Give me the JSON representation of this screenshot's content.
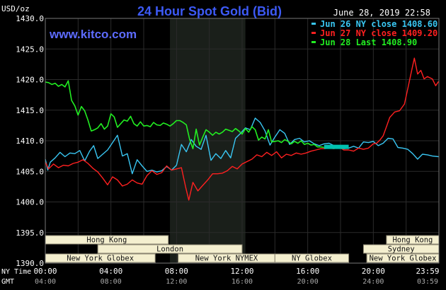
{
  "chart_data": {
    "type": "line",
    "title": "24 Hour Spot Gold (Bid)",
    "watermark": "www.kitco.com",
    "timestamp": "June 28, 2019 22:58",
    "y_unit_label": "USD/oz",
    "ylim": [
      1390.0,
      1430.0
    ],
    "y_ticks": [
      "1430.0",
      "1425.0",
      "1420.0",
      "1415.0",
      "1410.0",
      "1405.0",
      "1400.0",
      "1395.0",
      "1390.0"
    ],
    "x_range_hours": [
      0,
      24
    ],
    "x_row_labels": [
      "NY Time",
      "GMT"
    ],
    "x_ticks_ny": [
      "00:00",
      "04:00",
      "08:00",
      "12:00",
      "16:00",
      "20:00",
      "23:59"
    ],
    "x_ticks_gmt": [
      "04:00",
      "08:00",
      "12:00",
      "16:00",
      "20:00",
      "24:00",
      "03:59"
    ],
    "x_tick_hours": [
      0,
      4,
      8,
      12,
      16,
      20,
      23.98
    ],
    "shaded_hours": [
      7.6,
      12.2
    ],
    "grid": true,
    "legend_position": "top-right",
    "colors": {
      "background": "#000000",
      "grid": "#2b2b2b",
      "text": "#ffffff",
      "title": "#3d5af5",
      "watermark": "#5d6cff",
      "shade": "#1a1f1a",
      "session_fill": "#f4efcf",
      "session_border": "#8a8470",
      "series_jun26": "#39c6f2",
      "series_jun27": "#ff2020",
      "series_jun28": "#22ee22",
      "overlap_segment": "#00c2b0"
    },
    "sessions": {
      "row1": [
        {
          "label": "Hong Kong",
          "start": 0,
          "end": 7.5
        },
        {
          "label": "Hong Kong",
          "start": 20.8,
          "end": 24
        }
      ],
      "row2": [
        {
          "label": "London",
          "start": 3.2,
          "end": 12.0
        },
        {
          "label": "Sydney",
          "start": 19.4,
          "end": 24
        }
      ],
      "row3": [
        {
          "label": "New York Globex",
          "start": 0,
          "end": 6.7
        },
        {
          "label": "New York NYMEX",
          "start": 8.1,
          "end": 14.0
        },
        {
          "label": "NY Globex",
          "start": 14.0,
          "end": 18.5
        },
        {
          "label": "New York Globex",
          "start": 19.6,
          "end": 24
        }
      ]
    },
    "overlap_segment": {
      "x": [
        17.0,
        18.5
      ],
      "y": 1409.0
    },
    "series": [
      {
        "name": "Jun 26 NY close 1408.60",
        "color": "#39c6f2",
        "width": 1.4,
        "x": [
          0,
          0.15,
          0.3,
          0.6,
          0.9,
          1.2,
          1.5,
          1.8,
          2.1,
          2.4,
          2.7,
          2.95,
          3.2,
          3.5,
          3.8,
          4.1,
          4.4,
          4.7,
          5.0,
          5.3,
          5.6,
          5.9,
          6.2,
          6.5,
          6.8,
          7.1,
          7.4,
          7.7,
          8.0,
          8.3,
          8.6,
          8.9,
          9.2,
          9.5,
          9.8,
          10.1,
          10.4,
          10.7,
          11.0,
          11.3,
          11.6,
          11.9,
          12.2,
          12.5,
          12.8,
          13.1,
          13.4,
          13.7,
          14.0,
          14.3,
          14.6,
          14.9,
          15.2,
          15.5,
          15.8,
          16.1,
          16.4,
          16.7,
          17.0,
          17.3,
          17.6,
          17.9,
          18.2,
          18.5,
          18.8,
          19.1,
          19.4,
          19.7,
          20.0,
          20.3,
          20.6,
          20.9,
          21.2,
          21.5,
          21.8,
          22.1,
          22.4,
          22.7,
          23.0,
          23.3,
          23.6,
          23.98
        ],
        "y": [
          1407.0,
          1405.2,
          1406.5,
          1407.2,
          1408.1,
          1407.4,
          1408.0,
          1407.9,
          1408.4,
          1406.7,
          1408.3,
          1409.2,
          1407.1,
          1407.8,
          1408.5,
          1409.7,
          1410.9,
          1407.5,
          1407.9,
          1404.6,
          1406.9,
          1405.9,
          1405.0,
          1405.2,
          1404.9,
          1405.1,
          1405.8,
          1405.2,
          1406.0,
          1409.4,
          1408.2,
          1410.2,
          1409.1,
          1408.6,
          1410.9,
          1406.8,
          1407.9,
          1407.1,
          1408.4,
          1407.2,
          1410.4,
          1411.2,
          1412.1,
          1411.8,
          1413.7,
          1413.0,
          1411.6,
          1409.3,
          1410.6,
          1411.8,
          1411.2,
          1409.4,
          1410.2,
          1410.4,
          1409.8,
          1410.0,
          1409.5,
          1409.2,
          1409.5,
          1409.6,
          1409.2,
          1408.9,
          1408.7,
          1408.8,
          1409.1,
          1408.8,
          1409.8,
          1409.7,
          1409.9,
          1409.2,
          1409.6,
          1410.4,
          1410.3,
          1408.9,
          1408.8,
          1408.6,
          1407.9,
          1407.0,
          1407.8,
          1407.7,
          1407.5,
          1407.4
        ]
      },
      {
        "name": "Jun 27 NY close 1409.20",
        "color": "#ff2020",
        "width": 1.4,
        "x": [
          0,
          0.2,
          0.5,
          0.8,
          1.1,
          1.4,
          1.7,
          2.0,
          2.3,
          2.6,
          2.9,
          3.2,
          3.5,
          3.8,
          4.1,
          4.4,
          4.7,
          5.0,
          5.3,
          5.6,
          5.9,
          6.2,
          6.5,
          6.8,
          7.1,
          7.4,
          7.7,
          8.0,
          8.3,
          8.55,
          8.75,
          9.0,
          9.3,
          9.6,
          9.9,
          10.2,
          10.5,
          10.8,
          11.1,
          11.4,
          11.7,
          12.0,
          12.3,
          12.6,
          12.9,
          13.2,
          13.5,
          13.8,
          14.1,
          14.4,
          14.7,
          15.0,
          15.3,
          15.6,
          15.9,
          16.2,
          16.5,
          16.8,
          17.0,
          17.3,
          17.6,
          17.9,
          18.2,
          18.5,
          18.8,
          19.1,
          19.4,
          19.7,
          20.0,
          20.2,
          20.4,
          20.6,
          20.8,
          21.0,
          21.3,
          21.6,
          21.9,
          22.1,
          22.3,
          22.5,
          22.7,
          22.9,
          23.1,
          23.3,
          23.6,
          23.8,
          23.98
        ],
        "y": [
          1406.5,
          1405.4,
          1406.2,
          1405.6,
          1406.0,
          1405.9,
          1406.3,
          1406.5,
          1406.9,
          1406.3,
          1405.5,
          1404.9,
          1403.9,
          1402.8,
          1404.1,
          1403.6,
          1402.6,
          1402.9,
          1403.6,
          1403.1,
          1402.9,
          1404.3,
          1405.1,
          1404.5,
          1404.8,
          1405.9,
          1405.2,
          1405.4,
          1405.6,
          1402.5,
          1400.3,
          1403.2,
          1401.8,
          1402.7,
          1403.6,
          1404.6,
          1404.6,
          1404.7,
          1405.1,
          1405.8,
          1405.4,
          1406.2,
          1406.6,
          1407.0,
          1407.7,
          1407.4,
          1408.1,
          1407.6,
          1408.2,
          1407.2,
          1407.8,
          1407.6,
          1408.0,
          1407.8,
          1408.0,
          1408.3,
          1408.5,
          1408.7,
          1408.7,
          1408.8,
          1408.7,
          1409.0,
          1408.5,
          1408.5,
          1408.3,
          1408.8,
          1408.6,
          1408.8,
          1409.5,
          1409.6,
          1410.1,
          1410.8,
          1412.3,
          1413.8,
          1414.7,
          1414.9,
          1416.0,
          1418.5,
          1421.0,
          1423.5,
          1420.9,
          1421.5,
          1420.1,
          1420.5,
          1420.1,
          1419.0,
          1419.7
        ]
      },
      {
        "name": "Jun 28 Last 1408.90",
        "color": "#22ee22",
        "width": 1.6,
        "x": [
          0,
          0.2,
          0.4,
          0.6,
          0.8,
          1.0,
          1.2,
          1.4,
          1.6,
          1.8,
          2.0,
          2.2,
          2.4,
          2.6,
          2.8,
          3.0,
          3.2,
          3.4,
          3.6,
          3.8,
          4.0,
          4.2,
          4.4,
          4.6,
          4.8,
          5.0,
          5.2,
          5.4,
          5.6,
          5.8,
          6.0,
          6.2,
          6.4,
          6.6,
          6.8,
          7.0,
          7.2,
          7.4,
          7.6,
          7.8,
          8.0,
          8.2,
          8.4,
          8.6,
          8.8,
          9.0,
          9.2,
          9.4,
          9.6,
          9.8,
          10.0,
          10.2,
          10.4,
          10.6,
          10.8,
          11.0,
          11.2,
          11.4,
          11.6,
          11.8,
          12.0,
          12.2,
          12.4,
          12.6,
          12.8,
          13.0,
          13.2,
          13.4,
          13.6,
          13.8,
          14.0,
          14.2,
          14.4,
          14.6,
          14.8,
          15.0,
          15.2,
          15.4,
          15.6,
          15.8,
          16.0,
          16.2,
          16.4,
          16.6,
          16.8,
          17.0
        ],
        "y": [
          1419.6,
          1419.5,
          1419.2,
          1419.4,
          1418.9,
          1419.2,
          1418.8,
          1419.8,
          1416.6,
          1415.7,
          1414.2,
          1415.6,
          1414.9,
          1413.4,
          1411.6,
          1411.8,
          1412.1,
          1412.8,
          1411.9,
          1412.4,
          1414.4,
          1413.9,
          1412.2,
          1412.8,
          1413.4,
          1413.2,
          1414.0,
          1412.8,
          1412.4,
          1413.1,
          1412.4,
          1412.5,
          1412.3,
          1413.0,
          1412.6,
          1412.5,
          1412.9,
          1412.7,
          1412.4,
          1412.8,
          1413.3,
          1413.3,
          1413.0,
          1412.6,
          1410.2,
          1408.7,
          1411.9,
          1409.3,
          1410.6,
          1411.8,
          1411.4,
          1410.9,
          1411.4,
          1411.1,
          1411.4,
          1411.9,
          1411.7,
          1411.5,
          1412.0,
          1411.6,
          1411.1,
          1412.0,
          1411.4,
          1412.3,
          1411.8,
          1410.1,
          1410.6,
          1410.3,
          1411.8,
          1409.8,
          1409.9,
          1410.0,
          1409.7,
          1410.2,
          1409.9,
          1409.5,
          1409.9,
          1409.6,
          1410.0,
          1409.4,
          1409.6,
          1409.3,
          1409.4,
          1409.0,
          1409.0,
          1408.9
        ]
      }
    ]
  }
}
